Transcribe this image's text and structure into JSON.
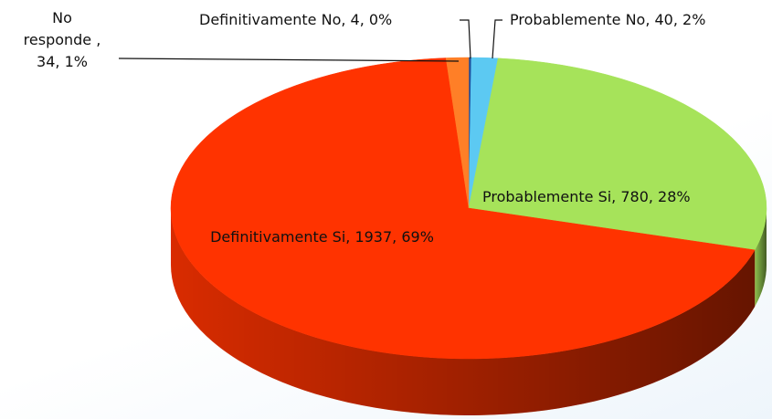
{
  "chart_data": {
    "type": "pie",
    "values": [
      4,
      40,
      780,
      1937,
      34
    ],
    "value_labels": [
      "Definitivamente No, 4, 0%",
      "Probablemente No, 40, 2%",
      "Probablemente Si, 780, 28%",
      "Definitivamente Si, 1937, 69%",
      "No responde , 34, 1%"
    ],
    "colors": [
      "#1f4e9a",
      "#5cc9f2",
      "#a6e35a",
      "#ff3300",
      "#ff7f27"
    ]
  }
}
